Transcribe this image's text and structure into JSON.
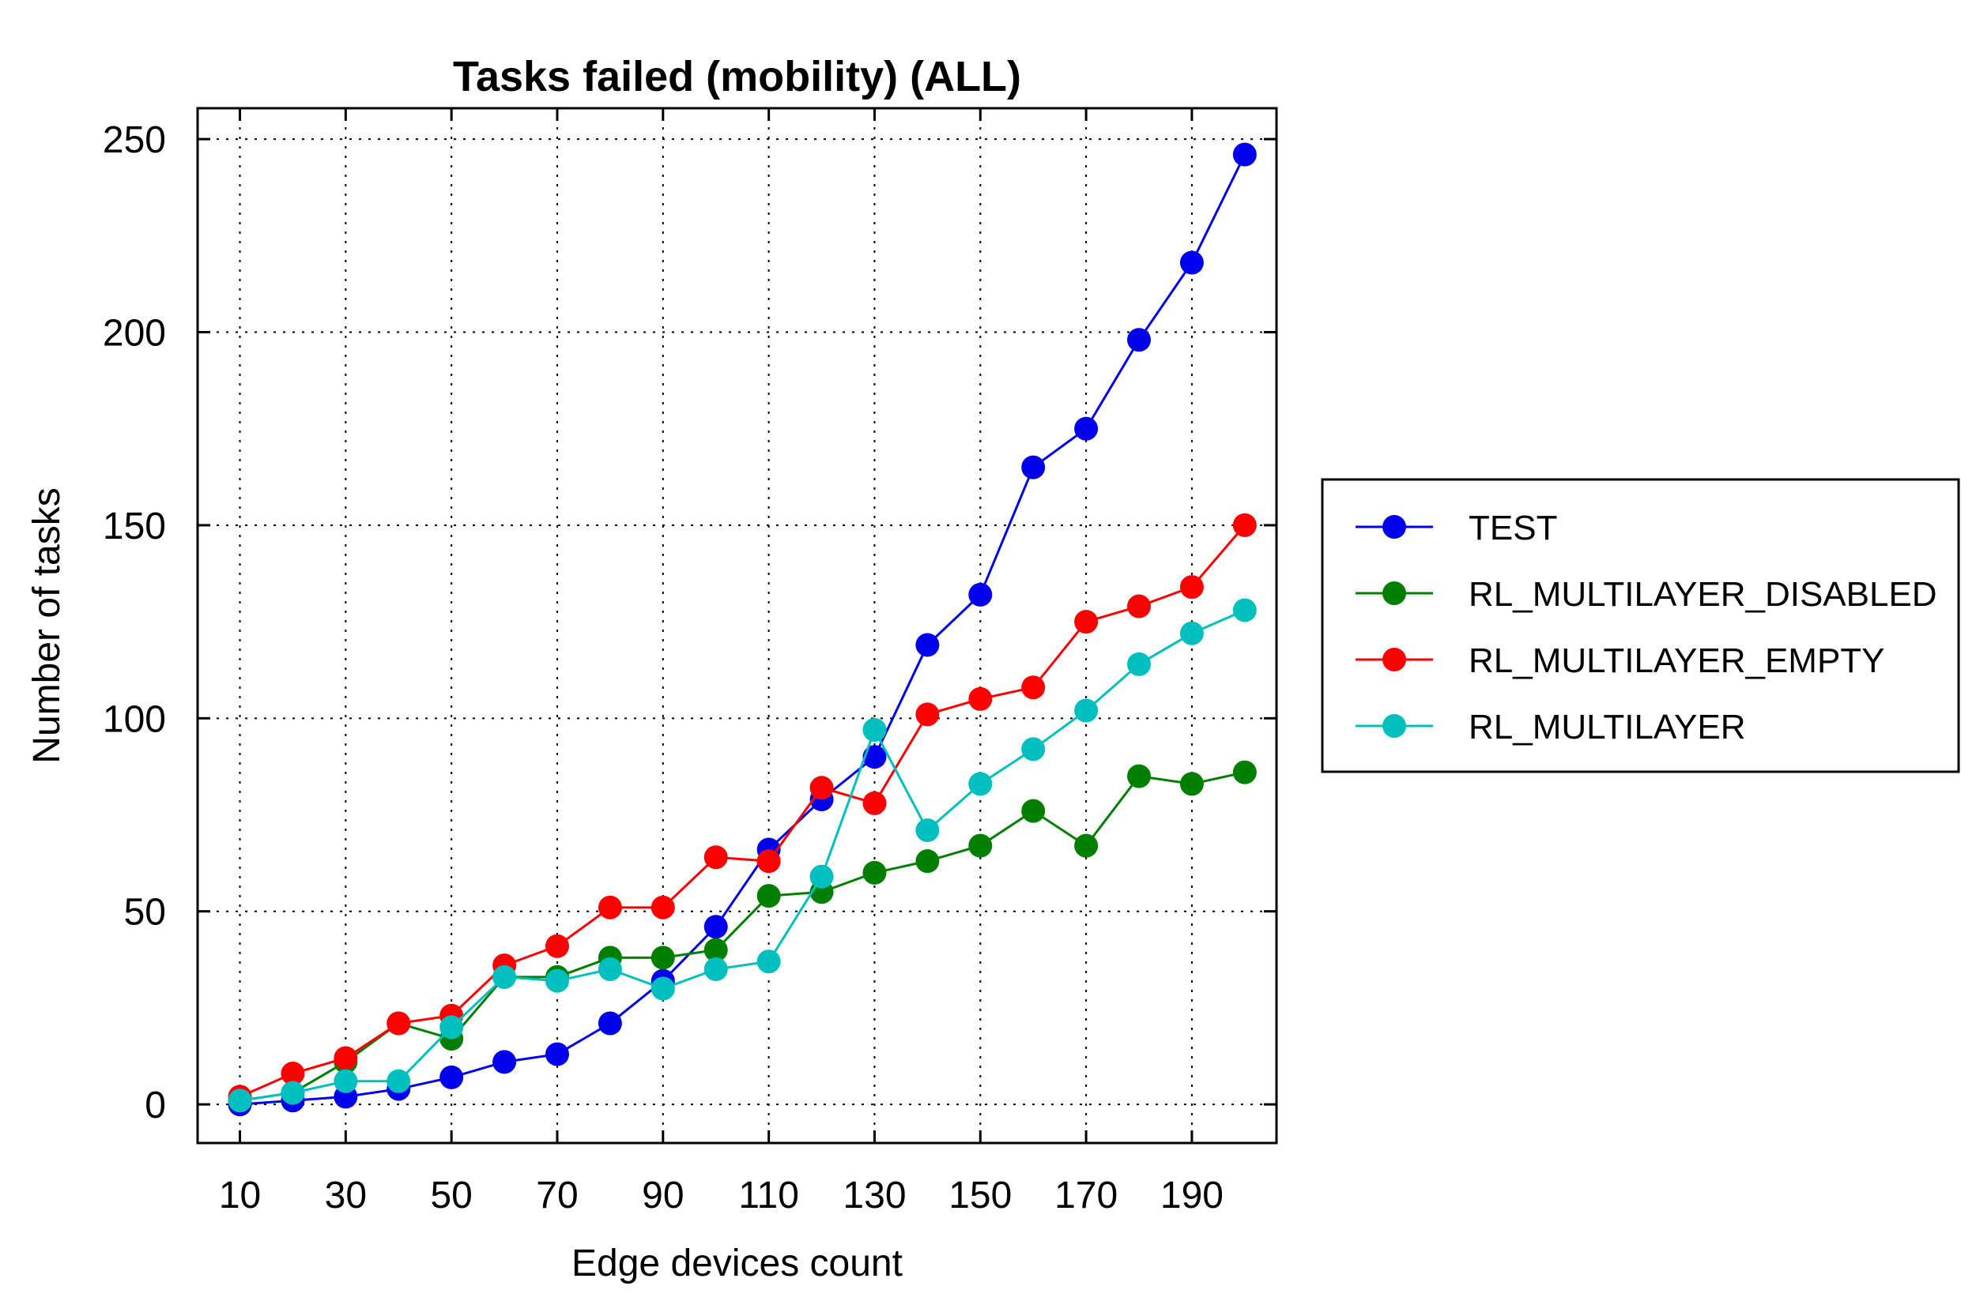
{
  "chart_data": {
    "type": "line",
    "title": "Tasks failed (mobility) (ALL)",
    "xlabel": "Edge devices count",
    "ylabel": "Number of tasks",
    "xlim": [
      2,
      206
    ],
    "ylim": [
      -10,
      258
    ],
    "xticks": [
      10,
      30,
      50,
      70,
      90,
      110,
      130,
      150,
      170,
      190
    ],
    "yticks": [
      0,
      50,
      100,
      150,
      200,
      250
    ],
    "grid": true,
    "legend_position": "right",
    "x": [
      10,
      20,
      30,
      40,
      50,
      60,
      70,
      80,
      90,
      100,
      110,
      120,
      130,
      140,
      150,
      160,
      170,
      180,
      190,
      200
    ],
    "series": [
      {
        "name": "TEST",
        "color": "#0000ee",
        "values": [
          0,
          1,
          2,
          4,
          7,
          11,
          13,
          21,
          32,
          46,
          66,
          79,
          90,
          119,
          132,
          165,
          175,
          198,
          218,
          246
        ]
      },
      {
        "name": "RL_MULTILAYER_DISABLED",
        "color": "#007f00",
        "values": [
          1,
          3,
          11,
          21,
          17,
          33,
          33,
          38,
          38,
          40,
          54,
          55,
          60,
          63,
          67,
          76,
          67,
          85,
          83,
          86
        ]
      },
      {
        "name": "RL_MULTILAYER_EMPTY",
        "color": "#ff0000",
        "values": [
          2,
          8,
          12,
          21,
          23,
          36,
          41,
          51,
          51,
          64,
          63,
          82,
          78,
          101,
          105,
          108,
          125,
          129,
          134,
          150
        ]
      },
      {
        "name": "RL_MULTILAYER",
        "color": "#00bfbf",
        "values": [
          1,
          3,
          6,
          6,
          20,
          33,
          32,
          35,
          30,
          35,
          37,
          59,
          97,
          71,
          83,
          92,
          102,
          114,
          122,
          128
        ]
      }
    ]
  }
}
